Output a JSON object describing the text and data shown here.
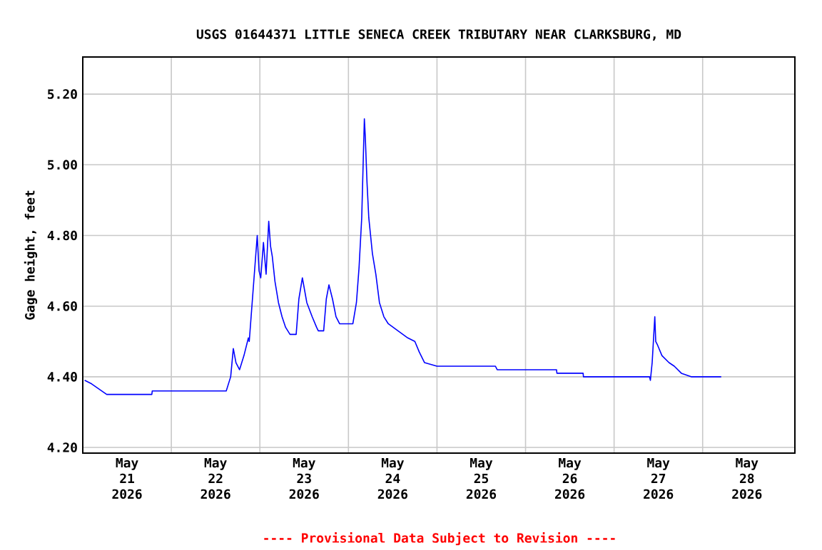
{
  "chart_data": {
    "type": "line",
    "title": "USGS 01644371 LITTLE SENECA CREEK TRIBUTARY NEAR CLARKSBURG, MD",
    "ylabel": "Gage height, feet",
    "annotations": [
      "---- Provisional Data Subject to Revision ----"
    ],
    "xlim": [
      "2026-05-21T00:00",
      "2026-05-29T01:00"
    ],
    "xticks": [
      {
        "value": "2026-05-21T12:00",
        "label": "May 21 2026"
      },
      {
        "value": "2026-05-22T12:00",
        "label": "May 22 2026"
      },
      {
        "value": "2026-05-23T12:00",
        "label": "May 23 2026"
      },
      {
        "value": "2026-05-24T12:00",
        "label": "May 24 2026"
      },
      {
        "value": "2026-05-25T12:00",
        "label": "May 25 2026"
      },
      {
        "value": "2026-05-26T12:00",
        "label": "May 26 2026"
      },
      {
        "value": "2026-05-27T12:00",
        "label": "May 27 2026"
      },
      {
        "value": "2026-05-28T12:00",
        "label": "May 28 2026"
      },
      {
        "value": "2026-05-22T00:00",
        "label": null
      },
      {
        "value": "2026-05-23T00:00",
        "label": null
      },
      {
        "value": "2026-05-24T00:00",
        "label": null
      },
      {
        "value": "2026-05-25T00:00",
        "label": null
      },
      {
        "value": "2026-05-26T00:00",
        "label": null
      },
      {
        "value": "2026-05-27T00:00",
        "label": null
      },
      {
        "value": "2026-05-28T00:00",
        "label": null
      }
    ],
    "ylim": [
      4.184,
      5.305
    ],
    "yticks": [
      {
        "value": 4.2,
        "label": "4.20"
      },
      {
        "value": 4.4,
        "label": "4.40"
      },
      {
        "value": 4.6,
        "label": "4.60"
      },
      {
        "value": 4.8,
        "label": "4.80"
      },
      {
        "value": 5.0,
        "label": "5.00"
      },
      {
        "value": 5.2,
        "label": "5.20"
      }
    ],
    "grid": true,
    "series": [
      {
        "color": "#0000ff",
        "x": [
          "2026-05-21T00:30",
          "2026-05-21T02:24",
          "2026-05-21T06:29",
          "2026-05-21T18:43",
          "2026-05-21T18:50",
          "2026-05-22T14:53",
          "2026-05-22T16:05",
          "2026-05-22T16:48",
          "2026-05-22T17:31",
          "2026-05-22T18:29",
          "2026-05-22T19:41",
          "2026-05-22T20:53",
          "2026-05-22T21:07",
          "2026-05-22T23:17",
          "2026-05-22T23:46",
          "2026-05-23T00:14",
          "2026-05-23T00:58",
          "2026-05-23T01:41",
          "2026-05-23T02:24",
          "2026-05-23T02:53",
          "2026-05-23T03:22",
          "2026-05-23T04:05",
          "2026-05-23T05:02",
          "2026-05-23T06:00",
          "2026-05-23T06:58",
          "2026-05-23T08:10",
          "2026-05-23T09:50",
          "2026-05-23T10:34",
          "2026-05-23T11:31",
          "2026-05-23T12:43",
          "2026-05-23T14:10",
          "2026-05-23T15:22",
          "2026-05-23T15:50",
          "2026-05-23T17:17",
          "2026-05-23T18:00",
          "2026-05-23T18:43",
          "2026-05-23T19:41",
          "2026-05-23T20:38",
          "2026-05-23T21:36",
          "2026-05-24T01:12",
          "2026-05-24T02:10",
          "2026-05-24T02:53",
          "2026-05-24T03:36",
          "2026-05-24T04:05",
          "2026-05-24T04:19",
          "2026-05-24T04:34",
          "2026-05-24T05:02",
          "2026-05-24T05:31",
          "2026-05-24T06:29",
          "2026-05-24T07:26",
          "2026-05-24T08:24",
          "2026-05-24T09:36",
          "2026-05-24T10:48",
          "2026-05-24T13:26",
          "2026-05-24T16:05",
          "2026-05-24T18:00",
          "2026-05-24T19:12",
          "2026-05-24T20:38",
          "2026-05-25T00:00",
          "2026-05-25T15:50",
          "2026-05-25T16:19",
          "2026-05-26T08:24",
          "2026-05-26T08:30",
          "2026-05-26T15:36",
          "2026-05-26T15:42",
          "2026-05-27T09:36",
          "2026-05-27T09:50",
          "2026-05-27T10:19",
          "2026-05-27T11:02",
          "2026-05-27T11:17",
          "2026-05-27T11:46",
          "2026-05-27T12:58",
          "2026-05-27T14:53",
          "2026-05-27T16:19",
          "2026-05-27T18:14",
          "2026-05-27T20:53",
          "2026-05-28T05:02"
        ],
        "values": [
          4.39,
          4.38,
          4.35,
          4.35,
          4.36,
          4.36,
          4.4,
          4.48,
          4.44,
          4.42,
          4.46,
          4.51,
          4.5,
          4.8,
          4.7,
          4.68,
          4.78,
          4.69,
          4.84,
          4.77,
          4.74,
          4.67,
          4.61,
          4.57,
          4.54,
          4.52,
          4.52,
          4.62,
          4.68,
          4.61,
          4.57,
          4.54,
          4.53,
          4.53,
          4.62,
          4.66,
          4.62,
          4.57,
          4.55,
          4.55,
          4.61,
          4.71,
          4.85,
          5.04,
          5.13,
          5.08,
          4.95,
          4.85,
          4.75,
          4.69,
          4.61,
          4.57,
          4.55,
          4.53,
          4.51,
          4.5,
          4.47,
          4.44,
          4.43,
          4.43,
          4.42,
          4.42,
          4.41,
          4.41,
          4.4,
          4.4,
          4.39,
          4.44,
          4.57,
          4.5,
          4.49,
          4.46,
          4.44,
          4.43,
          4.41,
          4.4,
          4.4
        ]
      }
    ]
  }
}
